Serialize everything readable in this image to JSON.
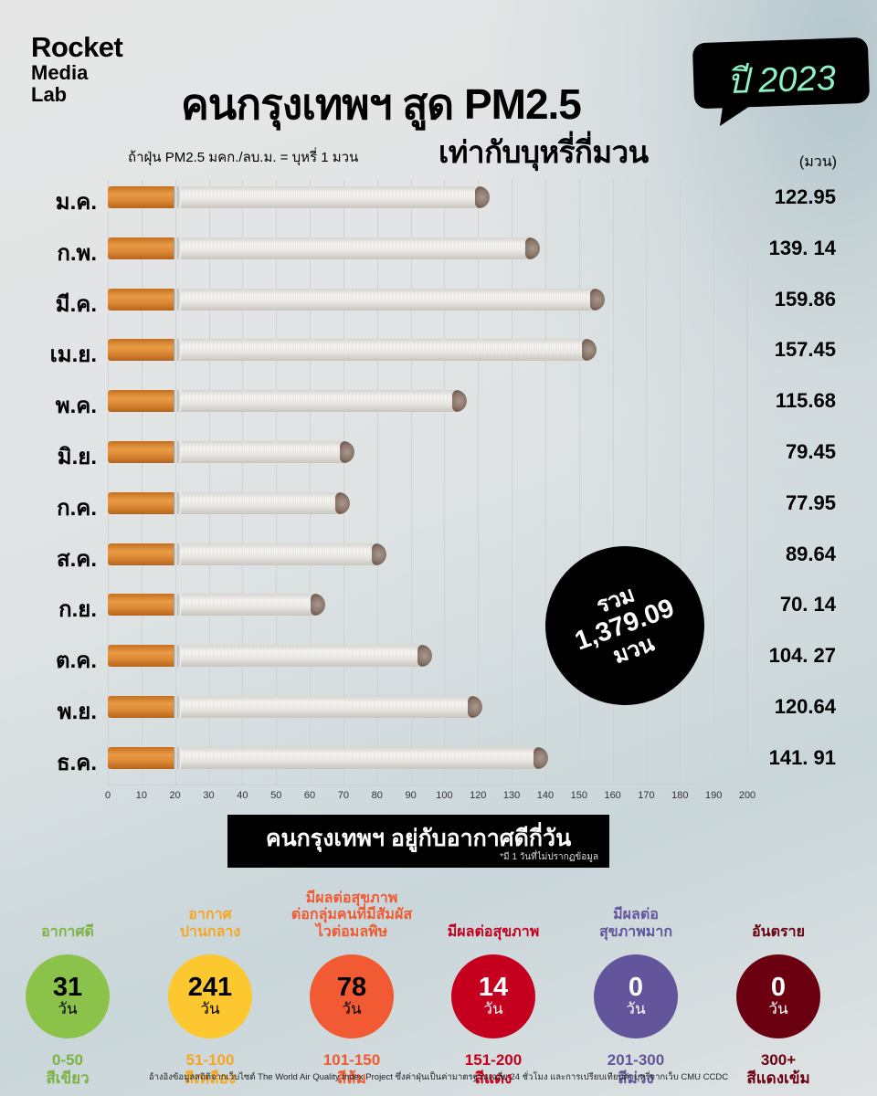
{
  "header": {
    "logo": [
      "Rocket",
      "Media",
      "Lab"
    ],
    "title": "คนกรุงเทพฯ สูด PM2.5",
    "subtitle": "เท่ากับบุหรี่กี่มวน",
    "badge": "ปี 2023",
    "note": "ถ้าฝุ่น PM2.5 มคก./ลบ.ม. = บุหรี่ 1 มวน",
    "unit": "(มวน)"
  },
  "chart_data": {
    "type": "bar",
    "orientation": "horizontal",
    "title": "คนกรุงเทพฯ สูด PM2.5 เท่ากับบุหรี่กี่มวน ปี 2023",
    "xlabel": "",
    "ylabel": "",
    "unit": "มวน",
    "categories": [
      "ม.ค.",
      "ก.พ.",
      "มี.ค.",
      "เม.ย.",
      "พ.ค.",
      "มิ.ย.",
      "ก.ค.",
      "ส.ค.",
      "ก.ย.",
      "ต.ค.",
      "พ.ย.",
      "ธ.ค."
    ],
    "values": [
      122.95,
      139.14,
      159.86,
      157.45,
      115.68,
      79.45,
      77.95,
      89.64,
      70.14,
      104.27,
      120.64,
      141.91
    ],
    "value_labels": [
      "122.95",
      "139. 14",
      "159.86",
      "157.45",
      "115.68",
      "79.45",
      "77.95",
      "89.64",
      "70. 14",
      "104. 27",
      "120.64",
      "141. 91"
    ],
    "x_ticks": [
      "0",
      "10",
      "20",
      "30",
      "40",
      "50",
      "60",
      "70",
      "80",
      "90",
      "100",
      "120",
      "130",
      "140",
      "150",
      "160",
      "170",
      "180",
      "190",
      "200"
    ],
    "xlim": [
      0,
      200
    ],
    "grid": true,
    "annotation": "รวม 1,379.09 มวน"
  },
  "total": {
    "line1": "รวม",
    "line2": "1,379.09",
    "line3": "มวน"
  },
  "days_section": {
    "title": "คนกรุงเทพฯ อยู่กับอากาศดีกี่วัน",
    "note": "*มี 1 วันที่ไม่ปรากฏข้อมูล",
    "unit": "วัน",
    "categories": [
      {
        "label": "อากาศดี",
        "days": "31",
        "range": "0-50",
        "color_name": "สีเขียว",
        "color": "#8bc34a",
        "text": "#000000",
        "label_color": "#7cb342"
      },
      {
        "label": "อากาศ ปานกลาง",
        "days": "241",
        "range": "51-100",
        "color_name": "สีเหลือง",
        "color": "#fdc82f",
        "text": "#000000",
        "label_color": "#f5a623"
      },
      {
        "label": "มีผลต่อสุขภาพ ต่อกลุ่มคนที่มีสัมผัส ไวต่อมลพิษ",
        "days": "78",
        "range": "101-150",
        "color_name": "สีส้ม",
        "color": "#f15a33",
        "text": "#000000",
        "label_color": "#f05a32"
      },
      {
        "label": "มีผลต่อสุขภาพ",
        "days": "14",
        "range": "151-200",
        "color_name": "สีแดง",
        "color": "#c4001e",
        "text": "#ffffff",
        "label_color": "#c4001e"
      },
      {
        "label": "มีผลต่อ สุขภาพมาก",
        "days": "0",
        "range": "201-300",
        "color_name": "สีม่วง",
        "color": "#63559c",
        "text": "#ffffff",
        "label_color": "#63559c"
      },
      {
        "label": "อันตราย",
        "days": "0",
        "range": "300+",
        "color_name": "สีแดงเข้ม",
        "color": "#6b0010",
        "text": "#ffffff",
        "label_color": "#6b0010"
      }
    ]
  },
  "footer": "อ้างอิงข้อมูลสถิติจากเว็บไซต์ The World Air Quality Index Project ซึ่งค่าฝุ่นเป็นค่ามาตรฐานเฉลี่ย 24 ชั่วโมง และการเปรียบเทียบค่าบุหรี่จากเว็บ CMU CCDC"
}
